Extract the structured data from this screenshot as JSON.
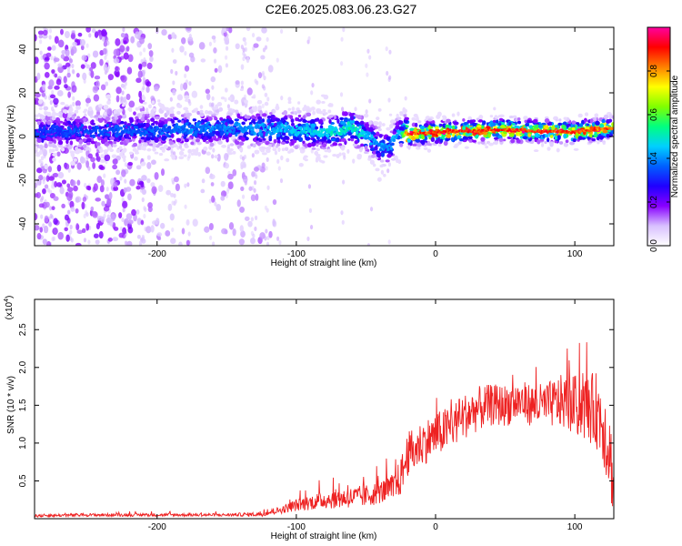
{
  "title": "C2E6.2025.083.06.23.G27",
  "chart_data": [
    {
      "type": "heatmap",
      "xlabel": "Height of straight line (km)",
      "ylabel": "Frequency (Hz)",
      "xlim": [
        -288,
        128
      ],
      "ylim": [
        -50,
        50
      ],
      "xticks": [
        -200,
        -100,
        0,
        100
      ],
      "yticks": [
        -40,
        -20,
        0,
        20,
        40
      ],
      "colorbar": {
        "label": "Normalized spectral amplitude",
        "range": [
          0,
          1
        ],
        "ticks": [
          "0.0",
          "0.2",
          "0.4",
          "0.6",
          "0.8"
        ],
        "tick_values": [
          0.0,
          0.2,
          0.4,
          0.6,
          0.8
        ],
        "colormap": [
          "#ffffff",
          "#d8c0ff",
          "#8800ff",
          "#2000ff",
          "#0060ff",
          "#00d0ff",
          "#00ff80",
          "#80ff00",
          "#ffff00",
          "#ff8000",
          "#ff0000",
          "#ff00a0"
        ]
      },
      "ridge": {
        "x": [
          -288,
          -200,
          -150,
          -100,
          -80,
          -60,
          -45,
          -35,
          -25,
          -20,
          0,
          50,
          100,
          128
        ],
        "frequency": [
          2,
          3,
          4,
          3,
          2,
          4,
          -2,
          -6,
          2,
          1,
          2,
          3,
          2,
          4
        ],
        "peak_amplitude": [
          0.35,
          0.38,
          0.42,
          0.48,
          0.5,
          0.55,
          0.45,
          0.42,
          0.5,
          0.95,
          0.95,
          0.95,
          0.95,
          0.9
        ]
      }
    },
    {
      "type": "line",
      "xlabel": "Height of straight line (km)",
      "ylabel": "SNR (10 * v/v)",
      "yscale_label": "(x10",
      "yscale_exp": "4",
      "xlim": [
        -288,
        128
      ],
      "ylim": [
        0,
        2.9
      ],
      "xticks": [
        -200,
        -100,
        0,
        100
      ],
      "yticks": [
        0.5,
        1.0,
        1.5,
        2.0,
        2.5
      ],
      "ytick_labels": [
        "0.5",
        "1.0",
        "1.5",
        "2.0",
        "2.5"
      ],
      "color": "#ee2222",
      "series": [
        {
          "x": [
            -288,
            -250,
            -200,
            -150,
            -125,
            -110,
            -100,
            -80,
            -60,
            -50,
            -40,
            -30,
            -25,
            -20,
            -15,
            -10,
            0,
            10,
            20,
            30,
            40,
            50,
            60,
            70,
            80,
            90,
            100,
            110,
            115,
            120,
            125,
            128
          ],
          "y": [
            0.04,
            0.05,
            0.05,
            0.05,
            0.06,
            0.12,
            0.18,
            0.25,
            0.28,
            0.3,
            0.35,
            0.4,
            0.55,
            0.85,
            0.9,
            1.0,
            1.1,
            1.2,
            1.35,
            1.45,
            1.5,
            1.5,
            1.55,
            1.5,
            1.5,
            1.55,
            1.5,
            1.45,
            1.45,
            1.3,
            0.9,
            0.4
          ],
          "noise": [
            0.02,
            0.02,
            0.02,
            0.02,
            0.03,
            0.05,
            0.08,
            0.12,
            0.14,
            0.15,
            0.15,
            0.2,
            0.25,
            0.3,
            0.3,
            0.3,
            0.3,
            0.3,
            0.3,
            0.3,
            0.28,
            0.28,
            0.28,
            0.28,
            0.3,
            0.35,
            0.4,
            0.45,
            0.5,
            0.55,
            0.6,
            0.4
          ]
        }
      ]
    }
  ]
}
